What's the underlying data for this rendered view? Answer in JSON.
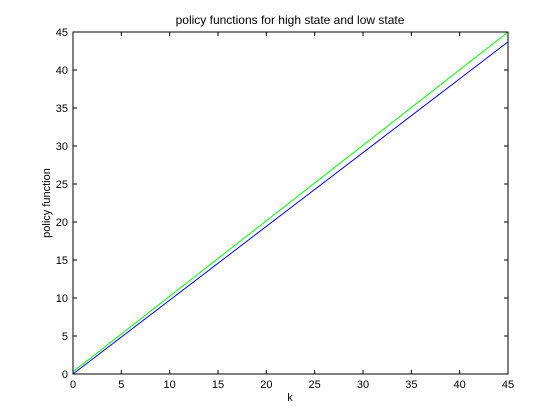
{
  "chart_data": {
    "type": "line",
    "title": "policy functions for high state and low state",
    "xlabel": "k",
    "ylabel": "policy function",
    "xlim": [
      0,
      45
    ],
    "ylim": [
      0,
      45
    ],
    "xticks": [
      "0",
      "5",
      "10",
      "15",
      "20",
      "25",
      "30",
      "35",
      "40",
      "45"
    ],
    "yticks": [
      "0",
      "5",
      "10",
      "15",
      "20",
      "25",
      "30",
      "35",
      "40",
      "45"
    ],
    "grid": false,
    "legend": "none",
    "series": [
      {
        "color": "#00ff00",
        "x": [
          0,
          45
        ],
        "y": [
          0.3,
          45
        ]
      },
      {
        "color": "#0000ff",
        "x": [
          0,
          45
        ],
        "y": [
          0,
          43.7
        ]
      }
    ]
  }
}
